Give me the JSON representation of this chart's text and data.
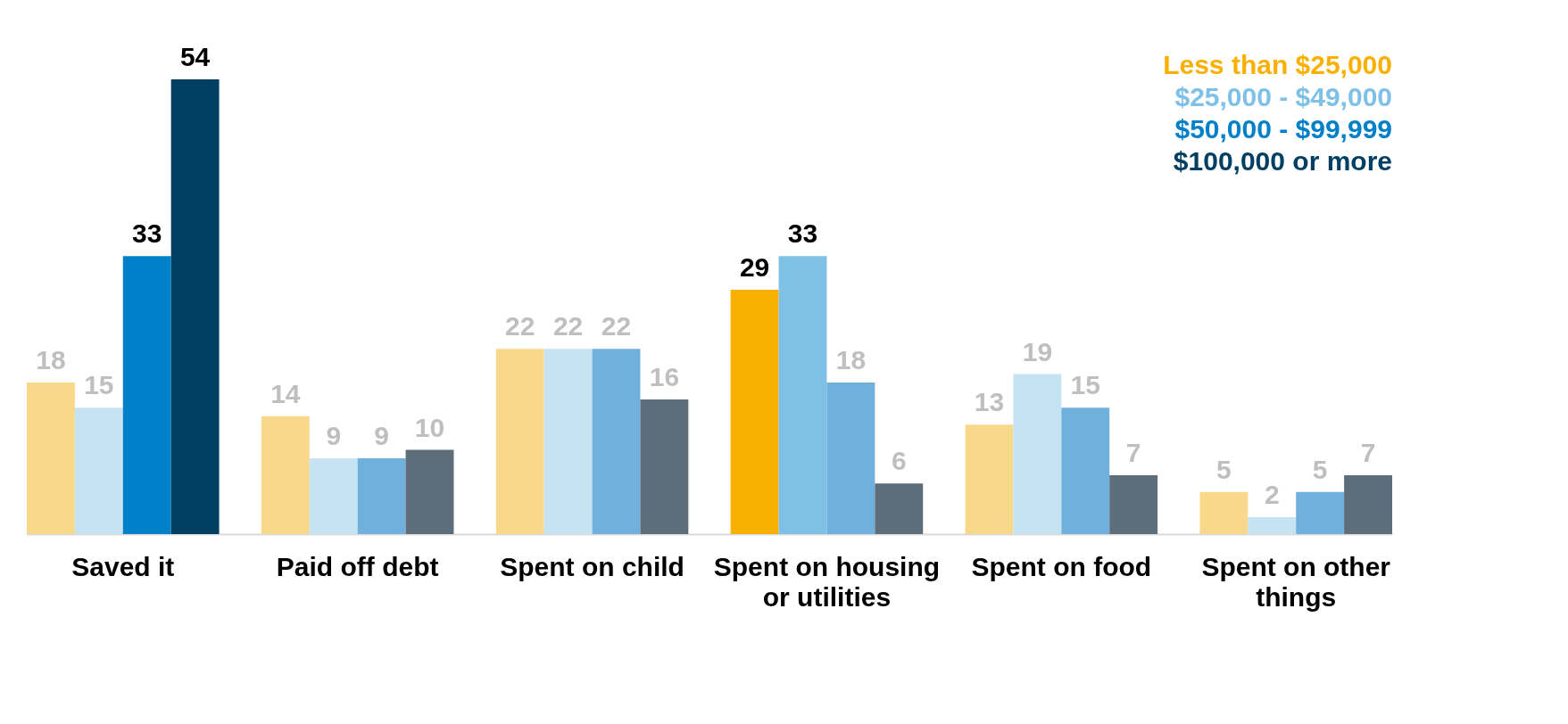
{
  "chart_data": {
    "type": "bar",
    "categories": [
      "Saved it",
      "Paid off debt",
      "Spent on child",
      "Spent on housing or utilities",
      "Spent on food",
      "Spent on other things"
    ],
    "series": [
      {
        "name": "Less than $25,000",
        "color": "#f9b000",
        "colors": [
          "#f8d98c",
          "#f8d98c",
          "#f8d98c",
          "#f9b000",
          "#f8d98c",
          "#f8d98c"
        ],
        "values": [
          18,
          14,
          22,
          29,
          13,
          5
        ]
      },
      {
        "name": "$25,000 - $49,000",
        "color": "#7fc0e6",
        "colors": [
          "#c6e3f4",
          "#c6e3f4",
          "#c6e3f4",
          "#7fc0e6",
          "#c6e3f4",
          "#c6e3f4"
        ],
        "values": [
          15,
          9,
          22,
          33,
          19,
          2
        ]
      },
      {
        "name": "$50,000 - $99,999",
        "color": "#0080c8",
        "colors": [
          "#0080c8",
          "#6fb0dc",
          "#6fb0dc",
          "#6fb0dc",
          "#6fb0dc",
          "#6fb0dc"
        ],
        "values": [
          33,
          9,
          22,
          18,
          15,
          5
        ]
      },
      {
        "name": "$100,000 or more",
        "color": "#003f62",
        "colors": [
          "#003f62",
          "#5d6d7a",
          "#5d6d7a",
          "#5d6d7a",
          "#5d6d7a",
          "#5d6d7a"
        ],
        "values": [
          54,
          10,
          16,
          6,
          7,
          7
        ]
      }
    ],
    "data_labels": true,
    "legend": "top right"
  }
}
